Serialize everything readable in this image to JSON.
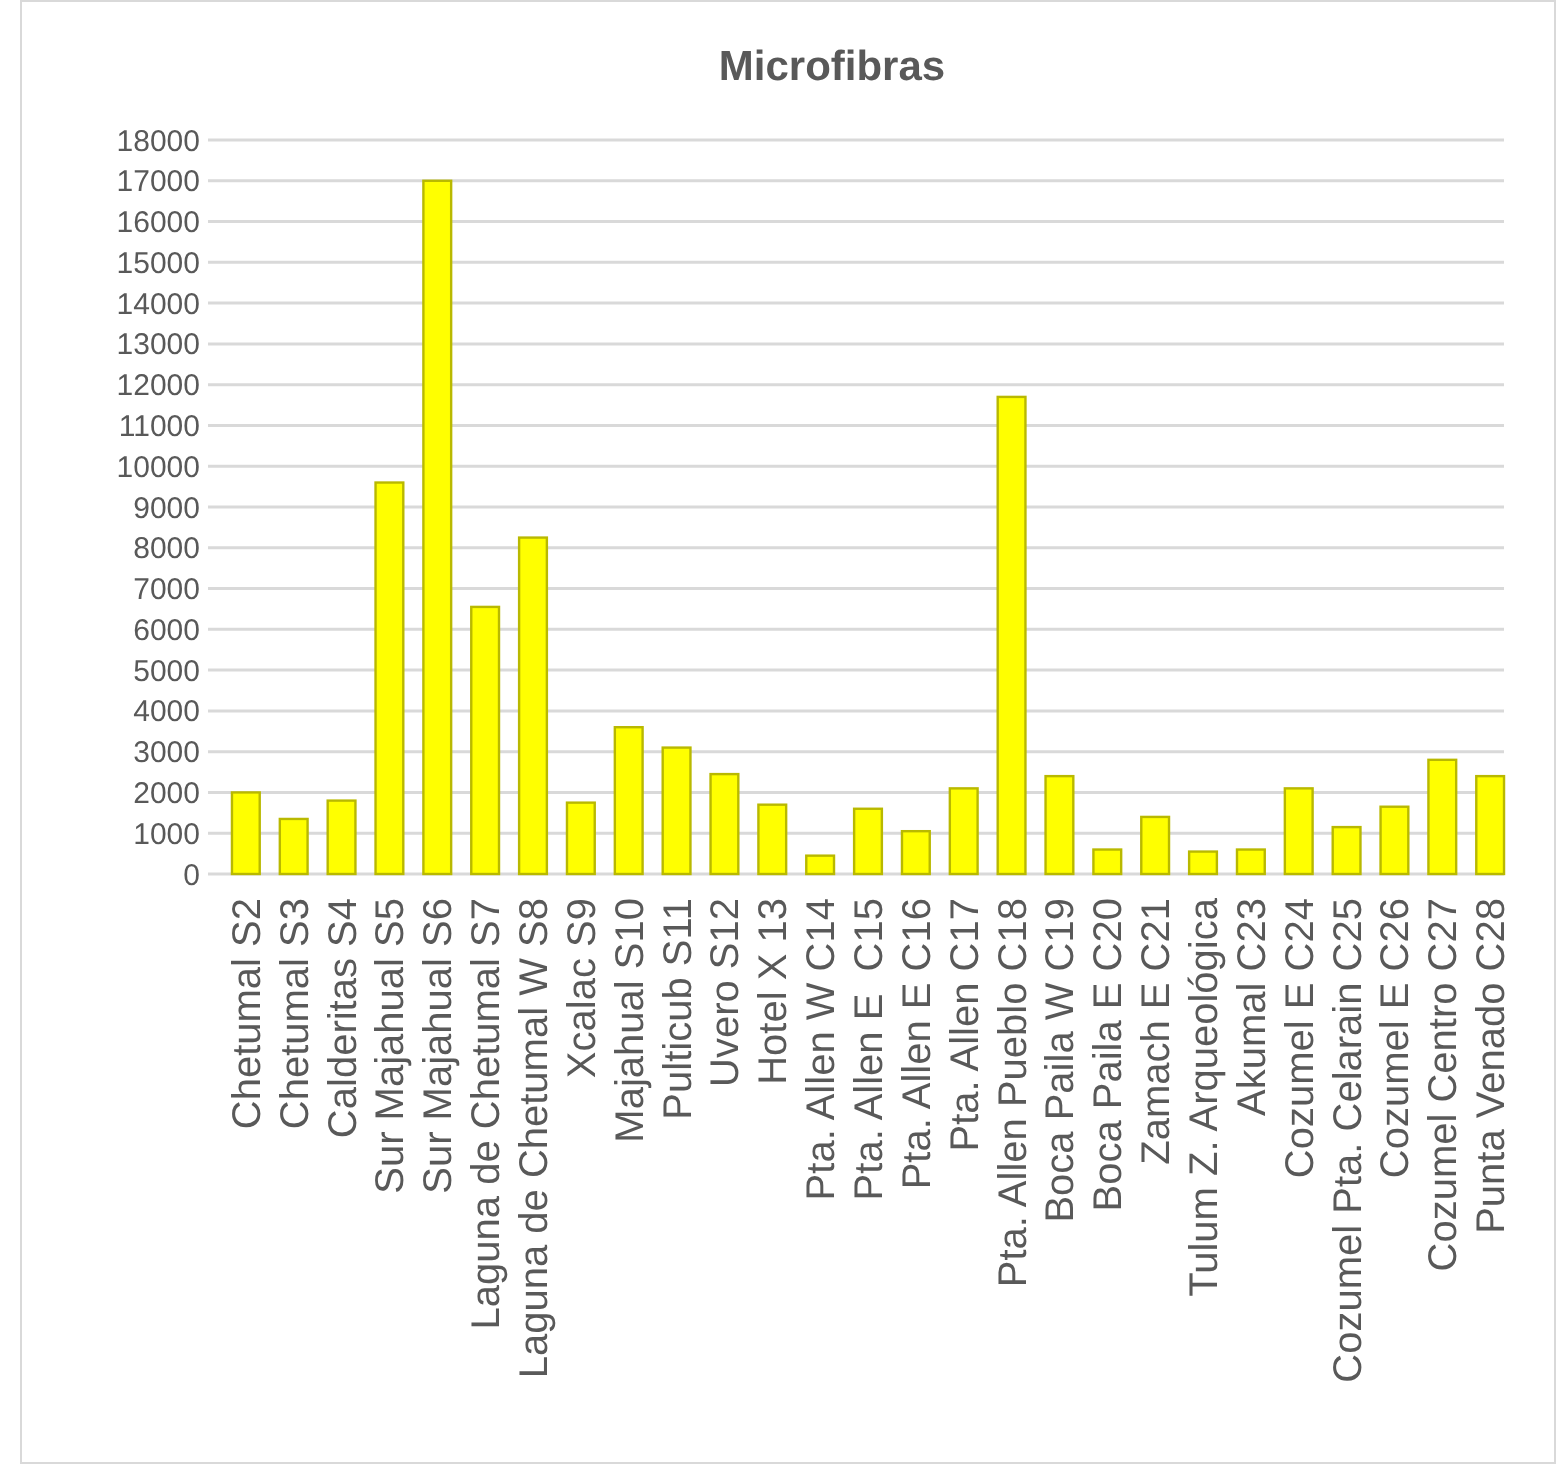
{
  "chart_data": {
    "type": "bar",
    "title": "Microfibras",
    "categories": [
      "Chetumal S2",
      "Chetumal S3",
      "Calderitas S4",
      "Sur Majahual S5",
      "Sur Majahual S6",
      "Laguna de Chetumal S7",
      "Laguna de Chetumal W S8",
      "Xcalac S9",
      "Majahual S10",
      "Pulticub S11",
      "Uvero S12",
      "Hotel X 13",
      "Pta. Allen W C14",
      "Pta. Allen E  C15",
      "Pta. Allen E C16",
      "Pta. Allen C17",
      "Pta. Allen Pueblo C18",
      "Boca Paila W C19",
      "Boca Paila E C20",
      "Zamach E C21",
      "Tulum Z. Arqueológica",
      "Akumal C23",
      "Cozumel E C24",
      "Cozumel Pta. Celarain C25",
      "Cozumel E C26",
      "Cozumel Centro C27",
      "Punta Venado C28"
    ],
    "values": [
      2000,
      1350,
      1800,
      9600,
      17000,
      6550,
      8250,
      1750,
      3600,
      3100,
      2450,
      1700,
      450,
      1600,
      1050,
      2100,
      11700,
      2400,
      600,
      1400,
      550,
      600,
      2100,
      1150,
      1650,
      2800,
      2400
    ],
    "color": "#ffff00",
    "ylim": [
      0,
      18000
    ],
    "yticks": [
      0,
      1000,
      2000,
      3000,
      4000,
      5000,
      6000,
      7000,
      8000,
      9000,
      10000,
      11000,
      12000,
      13000,
      14000,
      15000,
      16000,
      17000,
      18000
    ],
    "grid": "y"
  }
}
